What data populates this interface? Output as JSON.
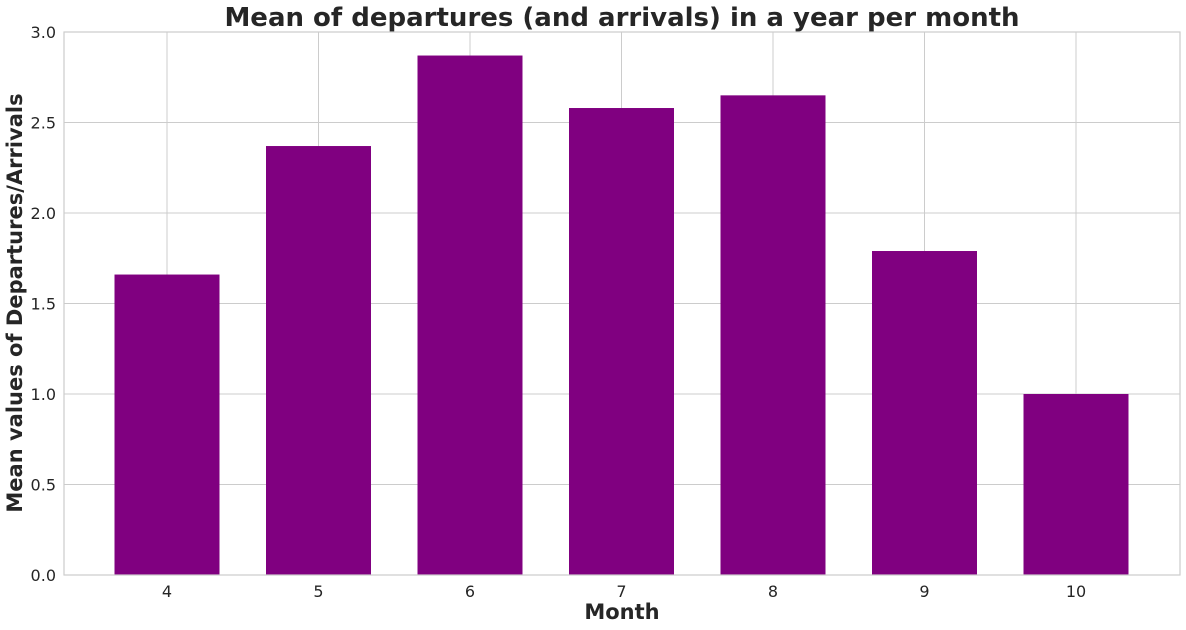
{
  "chart_data": {
    "type": "bar",
    "title": "Mean of departures (and arrivals) in a year per month",
    "xlabel": "Month",
    "ylabel": "Mean values of Departures/Arrivals",
    "categories": [
      "4",
      "5",
      "6",
      "7",
      "8",
      "9",
      "10"
    ],
    "values": [
      1.66,
      2.37,
      2.87,
      2.58,
      2.65,
      1.79,
      1.0
    ],
    "ylim": [
      0,
      3.0
    ],
    "yticks": [
      "0.0",
      "0.5",
      "1.0",
      "1.5",
      "2.0",
      "2.5",
      "3.0"
    ],
    "grid": true,
    "bar_color": "#800080"
  }
}
